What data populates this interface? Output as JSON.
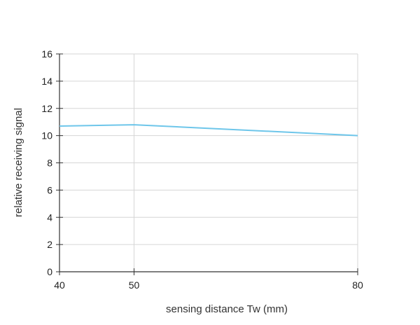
{
  "chart_data": {
    "type": "line",
    "xlabel": "sensing distance Tw (mm)",
    "ylabel": "relative receiving signal",
    "xlim": [
      40,
      80
    ],
    "ylim": [
      0,
      16
    ],
    "x_ticks": [
      40,
      50,
      80
    ],
    "y_ticks": [
      0,
      2,
      4,
      6,
      8,
      10,
      12,
      14,
      16
    ],
    "grid": true,
    "series": [
      {
        "x": [
          40,
          50,
          80
        ],
        "values": [
          10.7,
          10.8,
          10.0
        ]
      }
    ],
    "colors": {
      "line": "#6ec6ea",
      "grid": "#d6d6d6",
      "axis": "#333333"
    }
  }
}
